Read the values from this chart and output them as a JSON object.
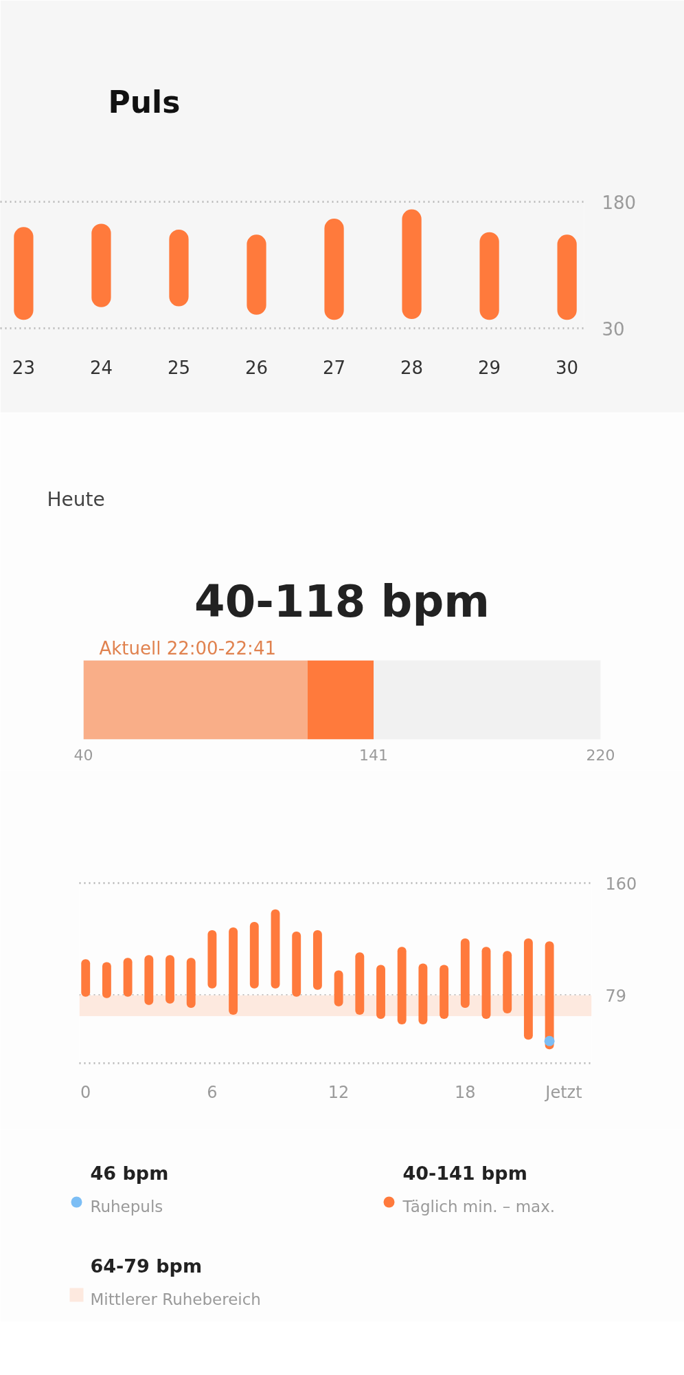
{
  "chart_data": [
    {
      "type": "bar",
      "title": "Puls",
      "categories": [
        "23",
        "24",
        "25",
        "26",
        "27",
        "28",
        "29",
        "30"
      ],
      "base": [
        40,
        55,
        56,
        46,
        40,
        41,
        40,
        40
      ],
      "values": [
        110,
        99,
        91,
        95,
        120,
        130,
        104,
        101
      ],
      "color": "#ff7a3c",
      "ylim": [
        30,
        180
      ],
      "yticks": [
        30,
        180
      ],
      "grid": "y"
    },
    {
      "type": "bar",
      "title": "Heute",
      "subtitle": "40-118 bpm",
      "annotations": [
        "Aktuell 22:00-22:41"
      ],
      "orientation": "horizontal",
      "categories": [
        null
      ],
      "series": [
        {
          "color": "#f9ae88",
          "base": [
            40
          ],
          "values": [
            78
          ]
        },
        {
          "color": "#ff7a3c",
          "base": [
            118
          ],
          "values": [
            23
          ]
        }
      ],
      "xlim": [
        40,
        220
      ],
      "xticks": [
        40,
        141,
        220
      ],
      "tick_labels": "x"
    },
    {
      "type": "bar",
      "x": [
        0,
        1,
        2,
        3,
        4,
        5,
        6,
        7,
        8,
        9,
        10,
        11,
        12,
        13,
        14,
        15,
        16,
        17,
        18,
        19,
        20,
        21,
        22
      ],
      "series": [
        {
          "type": "scatter",
          "name": "Ruhepuls",
          "color": "#7cbef5",
          "x": [
            22
          ],
          "values": [
            46
          ]
        },
        {
          "name": "Täglich min. – max.",
          "color": "#ff7a3c",
          "base": [
            78,
            77,
            78,
            72,
            73,
            70,
            84,
            65,
            84,
            84,
            78,
            83,
            71,
            65,
            62,
            58,
            58,
            62,
            70,
            62,
            66,
            47,
            40
          ],
          "values": [
            27,
            26,
            28,
            36,
            35,
            36,
            42,
            63,
            48,
            57,
            47,
            43,
            26,
            45,
            39,
            56,
            44,
            39,
            50,
            52,
            45,
            73,
            78
          ]
        }
      ],
      "xlim": [
        -0.3,
        24
      ],
      "xticks": [
        0,
        6,
        12,
        18,
        {
          "value": 22.68,
          "label": "Jetzt"
        }
      ],
      "ylim": [
        30,
        160
      ],
      "yticks": [
        {
          "value": 30,
          "label": null
        },
        79,
        160
      ],
      "grid": "y",
      "bands": [
        {
          "axis": "y",
          "from": 64,
          "to": 79,
          "label": "Mittlerer Ruhebereich",
          "color": "#fde9df"
        }
      ],
      "annotations": [
        "46 bpm",
        "40-141 bpm",
        "64-79 bpm"
      ],
      "legend": "bottom"
    }
  ]
}
